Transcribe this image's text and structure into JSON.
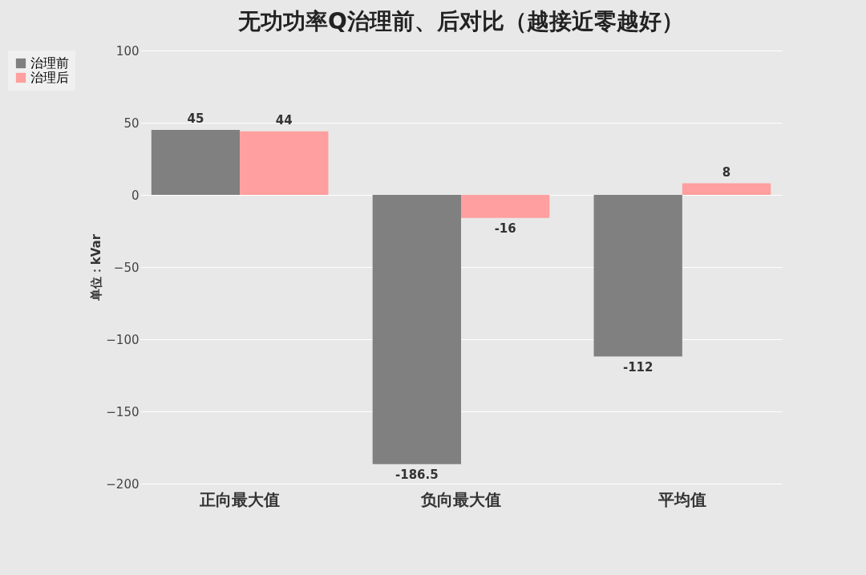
{
  "chart_data": {
    "type": "bar",
    "title": "无功功率Q治理前、后对比（越接近零越好）",
    "ylabel": "单位：kVar",
    "categories": [
      "正向最大值",
      "负向最大值",
      "平均值"
    ],
    "series": [
      {
        "name": "治理前",
        "color": "#808080",
        "values": [
          45,
          -186.5,
          -112
        ]
      },
      {
        "name": "治理后",
        "color": "#ff9f9f",
        "values": [
          44,
          -16,
          8
        ]
      }
    ],
    "ylim": [
      -200,
      100
    ],
    "yticks": [
      -200,
      -150,
      -100,
      -50,
      0,
      50,
      100
    ],
    "grid": "y",
    "legend": "left",
    "data_labels": true
  }
}
